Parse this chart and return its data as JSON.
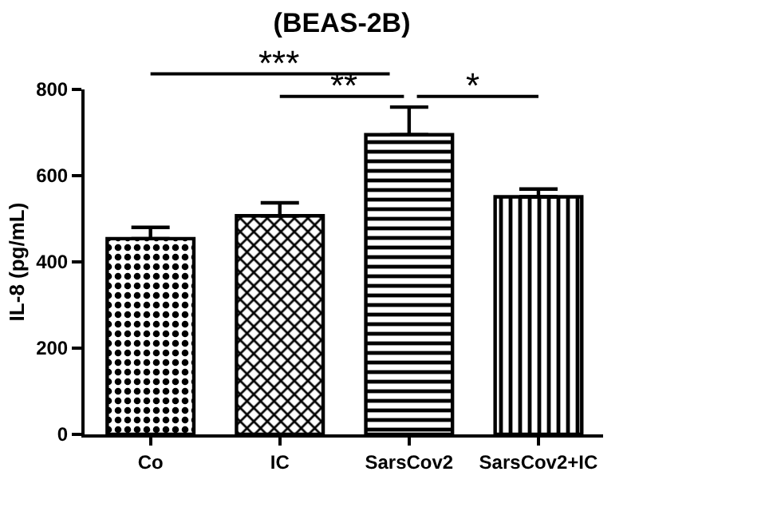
{
  "chart_data": {
    "type": "bar",
    "title": "(BEAS-2B)",
    "ylabel": "IL-8 (pg/mL)",
    "categories": [
      "Co",
      "IC",
      "SarsCov2",
      "SarsCov2+IC"
    ],
    "values": [
      454,
      507,
      695,
      551
    ],
    "errors": [
      [
        454,
        480
      ],
      [
        507,
        537
      ],
      [
        695,
        759
      ],
      [
        551,
        569
      ]
    ],
    "colors": [
      "#000000",
      "#000000",
      "#000000",
      "#000000"
    ],
    "ylim": [
      0,
      800
    ],
    "yticks": [
      0,
      200,
      400,
      600,
      800
    ],
    "grid": false,
    "annotations": [
      "***",
      "**",
      "*"
    ]
  }
}
